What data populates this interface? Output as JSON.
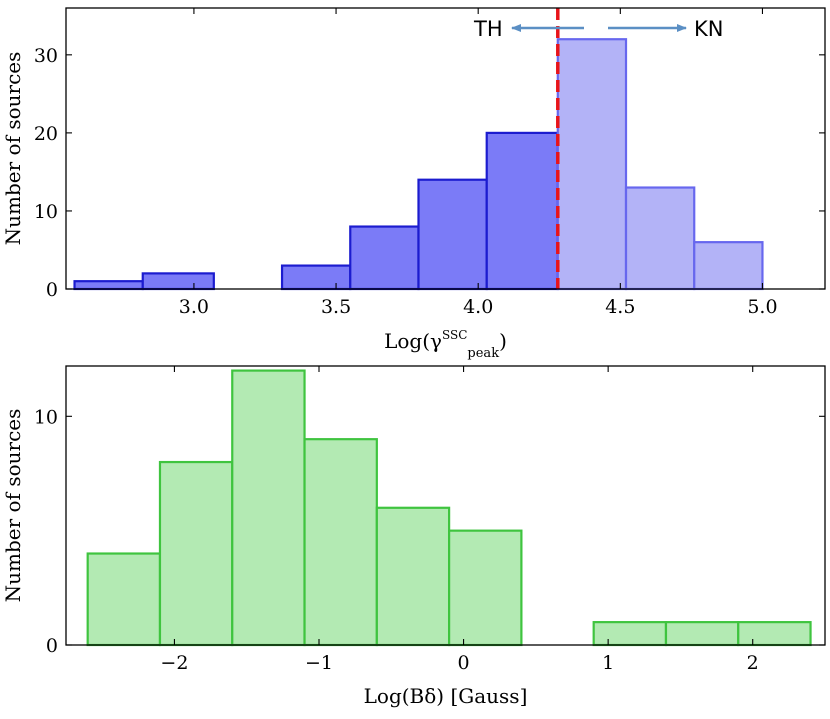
{
  "chart_data": [
    {
      "type": "bar",
      "id": "gamma-peak-histogram",
      "xlabel": "Log(γ",
      "xlabel_sub": "peak",
      "xlabel_sup": "SSC",
      "xlabel_close": ")",
      "ylabel": "Number of sources",
      "xlim": [
        2.55,
        5.22
      ],
      "ylim": [
        0,
        36
      ],
      "xticks": [
        3.0,
        3.5,
        4.0,
        4.5,
        5.0
      ],
      "xtick_labels": [
        "3.0",
        "3.5",
        "4.0",
        "4.5",
        "5.0"
      ],
      "yticks": [
        0,
        10,
        20,
        30
      ],
      "ytick_labels": [
        "0",
        "10",
        "20",
        "30"
      ],
      "series": [
        {
          "name": "TH",
          "fill": "#7b7bf7",
          "edge": "#1c1ccf",
          "bins": [
            {
              "x0": 2.58,
              "x1": 2.82,
              "count": 1
            },
            {
              "x0": 2.82,
              "x1": 3.07,
              "count": 2
            },
            {
              "x0": 3.31,
              "x1": 3.55,
              "count": 3
            },
            {
              "x0": 3.55,
              "x1": 3.79,
              "count": 8
            },
            {
              "x0": 3.79,
              "x1": 4.03,
              "count": 14
            },
            {
              "x0": 4.03,
              "x1": 4.28,
              "count": 20
            }
          ]
        },
        {
          "name": "KN",
          "fill": "#b3b3f7",
          "edge": "#6767ee",
          "bins": [
            {
              "x0": 4.28,
              "x1": 4.52,
              "count": 32
            },
            {
              "x0": 4.52,
              "x1": 4.76,
              "count": 13
            },
            {
              "x0": 4.76,
              "x1": 5.0,
              "count": 6
            }
          ]
        }
      ],
      "threshold": {
        "x": 4.28,
        "color": "#e8141a"
      },
      "annotations": {
        "left_label": "TH",
        "right_label": "KN",
        "arrow_color": "#5b8fc4"
      }
    },
    {
      "type": "bar",
      "id": "b-delta-histogram",
      "xlabel": "Log(Bδ) [Gauss]",
      "ylabel": "Number of sources",
      "xlim": [
        -2.75,
        2.5
      ],
      "ylim": [
        0,
        12.2
      ],
      "xticks": [
        -2,
        -1,
        0,
        1,
        2
      ],
      "xtick_labels": [
        "−2",
        "−1",
        "0",
        "1",
        "2"
      ],
      "yticks": [
        0,
        10
      ],
      "ytick_labels": [
        "0",
        "10"
      ],
      "series": [
        {
          "name": "",
          "fill": "#b3eab3",
          "edge": "#3fc43f",
          "bins": [
            {
              "x0": -2.6,
              "x1": -2.1,
              "count": 4
            },
            {
              "x0": -2.1,
              "x1": -1.6,
              "count": 8
            },
            {
              "x0": -1.6,
              "x1": -1.1,
              "count": 12
            },
            {
              "x0": -1.1,
              "x1": -0.6,
              "count": 9
            },
            {
              "x0": -0.6,
              "x1": -0.1,
              "count": 6
            },
            {
              "x0": -0.1,
              "x1": 0.4,
              "count": 5
            },
            {
              "x0": 0.9,
              "x1": 1.4,
              "count": 1
            },
            {
              "x0": 1.4,
              "x1": 1.9,
              "count": 1
            },
            {
              "x0": 1.9,
              "x1": 2.4,
              "count": 1
            }
          ]
        }
      ]
    }
  ]
}
